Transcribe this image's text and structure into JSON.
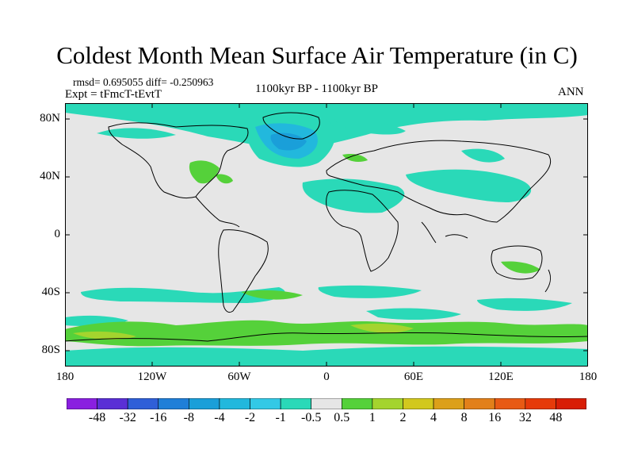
{
  "title": "Coldest Month Mean Surface Air Temperature (in C)",
  "stats": "rmsd= 0.695055  diff= -0.250963",
  "experiment": "Expt = tFmcT-tEvtT",
  "period": "1100kyr BP - 1100kyr BP",
  "season": "ANN",
  "lat_axis": [
    "80N",
    "40N",
    "0",
    "40S",
    "80S"
  ],
  "lon_axis": [
    "180",
    "120W",
    "60W",
    "0",
    "60E",
    "120E",
    "180"
  ],
  "colorbar": {
    "labels": [
      "-48",
      "-32",
      "-16",
      "-8",
      "-4",
      "-2",
      "-1",
      "-0.5",
      "0.5",
      "1",
      "2",
      "4",
      "8",
      "16",
      "32",
      "48"
    ],
    "colors": [
      "#8a1fe0",
      "#5a2fd6",
      "#2f5fd8",
      "#1f7fd8",
      "#1a9fd9",
      "#22b8dd",
      "#33c9e6",
      "#2ad9b8",
      "#e6e6e6",
      "#55d13a",
      "#a4d42e",
      "#d2c81e",
      "#dca01a",
      "#e2801a",
      "#e85a14",
      "#e63a0a",
      "#d81e06"
    ]
  },
  "colors": {
    "land_neutral": "#e6e6e6",
    "coast": "#000000"
  }
}
